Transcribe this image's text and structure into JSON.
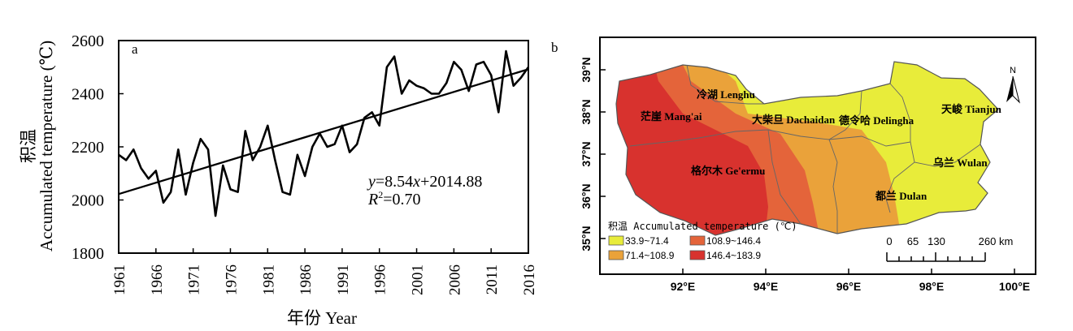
{
  "chart_data": [
    {
      "panel": "a",
      "type": "line",
      "panel_label": "a",
      "xlabel": "年份 Year",
      "ylabel_cn": "积温",
      "ylabel_en": "Accumulated temperature (℃)",
      "ylim": [
        1800,
        2600
      ],
      "yticks": [
        "1800",
        "2000",
        "2200",
        "2400",
        "2600"
      ],
      "xlim": [
        1961,
        2016
      ],
      "xticks": [
        "1961",
        "1966",
        "1971",
        "1976",
        "1981",
        "1986",
        "1991",
        "1996",
        "2001",
        "2006",
        "2011",
        "2016"
      ],
      "series": [
        {
          "name": "Accumulated temperature",
          "x": [
            1961,
            1962,
            1963,
            1964,
            1965,
            1966,
            1967,
            1968,
            1969,
            1970,
            1971,
            1972,
            1973,
            1974,
            1975,
            1976,
            1977,
            1978,
            1979,
            1980,
            1981,
            1982,
            1983,
            1984,
            1985,
            1986,
            1987,
            1988,
            1989,
            1990,
            1991,
            1992,
            1993,
            1994,
            1995,
            1996,
            1997,
            1998,
            1999,
            2000,
            2001,
            2002,
            2003,
            2004,
            2005,
            2006,
            2007,
            2008,
            2009,
            2010,
            2011,
            2012,
            2013,
            2014,
            2015,
            2016
          ],
          "values": [
            2170,
            2150,
            2190,
            2120,
            2080,
            2110,
            1990,
            2030,
            2190,
            2020,
            2140,
            2230,
            2190,
            1940,
            2130,
            2040,
            2030,
            2260,
            2150,
            2200,
            2280,
            2150,
            2030,
            2020,
            2170,
            2090,
            2200,
            2250,
            2200,
            2210,
            2280,
            2180,
            2210,
            2310,
            2330,
            2280,
            2500,
            2540,
            2400,
            2450,
            2430,
            2420,
            2400,
            2400,
            2440,
            2520,
            2490,
            2410,
            2510,
            2520,
            2470,
            2330,
            2560,
            2430,
            2460,
            2500
          ]
        },
        {
          "name": "Linear trend",
          "x": [
            1961,
            2016
          ],
          "values": [
            2022.4,
            2492.1
          ]
        }
      ],
      "annotations": {
        "equation": "y=8.54x+2014.88",
        "r2": "R²=0.70"
      }
    },
    {
      "panel": "b",
      "type": "map",
      "panel_label": "b",
      "legend_title": "积温 Accumulated temperature (℃)",
      "legend": [
        {
          "label": "33.9~71.4",
          "color": "#e8ec3a"
        },
        {
          "label": "71.4~108.9",
          "color": "#eaa23a"
        },
        {
          "label": "108.9~146.4",
          "color": "#e4643a"
        },
        {
          "label": "146.4~183.9",
          "color": "#d8322e"
        }
      ],
      "x_ticks": [
        "92°E",
        "94°E",
        "96°E",
        "98°E",
        "100°E"
      ],
      "y_ticks": [
        "39°N",
        "38°N",
        "37°N",
        "36°N",
        "35°N"
      ],
      "places": [
        {
          "name": "冷湖 Lenghu"
        },
        {
          "name": "茫崖 Mang'ai"
        },
        {
          "name": "大柴旦 Dachaidan"
        },
        {
          "name": "德令哈 Delingha"
        },
        {
          "name": "天峻 Tianjun"
        },
        {
          "name": "乌兰 Wulan"
        },
        {
          "name": "格尔木 Ge'ermu"
        },
        {
          "name": "都兰 Dulan"
        }
      ],
      "scale_labels": [
        "0",
        "65",
        "130",
        "260 km"
      ],
      "north_label": "N"
    }
  ]
}
